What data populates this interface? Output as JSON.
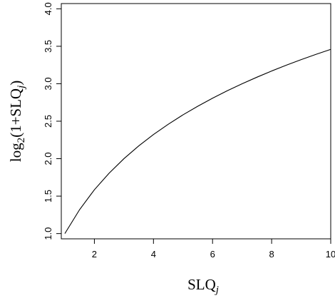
{
  "chart_data": {
    "type": "line",
    "title": "",
    "xlabel": "SLQj",
    "ylabel": "log2(1+SLQj)",
    "xlim": [
      0.88,
      10.0
    ],
    "ylim": [
      0.93,
      4.07
    ],
    "x_ticks": [
      "2",
      "4",
      "6",
      "8",
      "10"
    ],
    "y_ticks": [
      "1.0",
      "1.5",
      "2.0",
      "2.5",
      "3.0",
      "3.5",
      "4.0"
    ],
    "grid": false,
    "series": [
      {
        "x": [
          1.0,
          1.5,
          2.0,
          2.5,
          3.0,
          3.5,
          4.0,
          4.5,
          5.0,
          5.5,
          6.0,
          6.5,
          7.0,
          7.5,
          8.0,
          8.5,
          9.0,
          9.5,
          10.0
        ],
        "values": [
          1.0,
          1.32,
          1.585,
          1.807,
          2.0,
          2.17,
          2.322,
          2.459,
          2.585,
          2.7,
          2.807,
          2.907,
          3.0,
          3.087,
          3.17,
          3.248,
          3.322,
          3.392,
          3.459
        ]
      }
    ]
  }
}
